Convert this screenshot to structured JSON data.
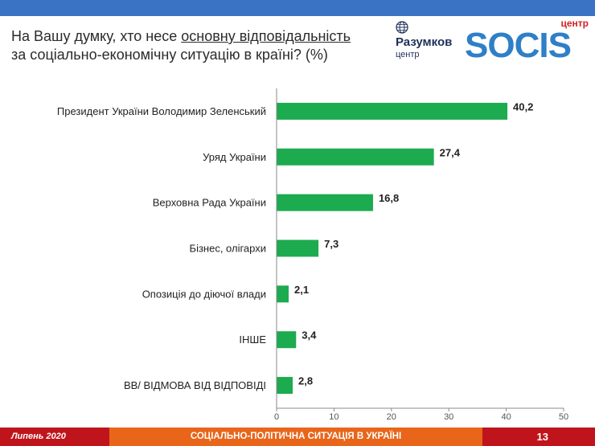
{
  "header": {
    "title_part1": "На Вашу думку, хто несе ",
    "title_underlined": "основну відповідальність",
    "title_part2": "за соціально-економічну ситуацію в країні? (%)"
  },
  "logos": {
    "razumkov_name": "Разумков",
    "razumkov_sub": "центр",
    "socis_prefix": "центр",
    "socis_name": "SOCIS"
  },
  "footer": {
    "date": "Липень 2020",
    "subject": "СОЦІАЛЬНО-ПОЛІТИЧНА СИТУАЦІЯ В УКРАЇНІ",
    "page": "13"
  },
  "colors": {
    "bar": "#1cab4f",
    "top_bar": "#3a72c4",
    "footer_red": "#c0141c",
    "footer_orange": "#e8651a"
  },
  "chart_data": {
    "type": "bar",
    "orientation": "horizontal",
    "categories": [
      "Президент України Володимир Зеленський",
      "Уряд України",
      "Верховна Рада України",
      "Бізнес, олігархи",
      "Опозиція до діючої влади",
      "ІНШЕ",
      "ВВ/ ВІДМОВА ВІД ВІДПОВІДІ"
    ],
    "values": [
      40.2,
      27.4,
      16.8,
      7.3,
      2.1,
      3.4,
      2.8
    ],
    "value_labels": [
      "40,2",
      "27,4",
      "16,8",
      "7,3",
      "2,1",
      "3,4",
      "2,8"
    ],
    "xlim": [
      0,
      50
    ],
    "xticks": [
      0,
      10,
      20,
      30,
      40,
      50
    ],
    "grid": false,
    "legend": "none"
  }
}
